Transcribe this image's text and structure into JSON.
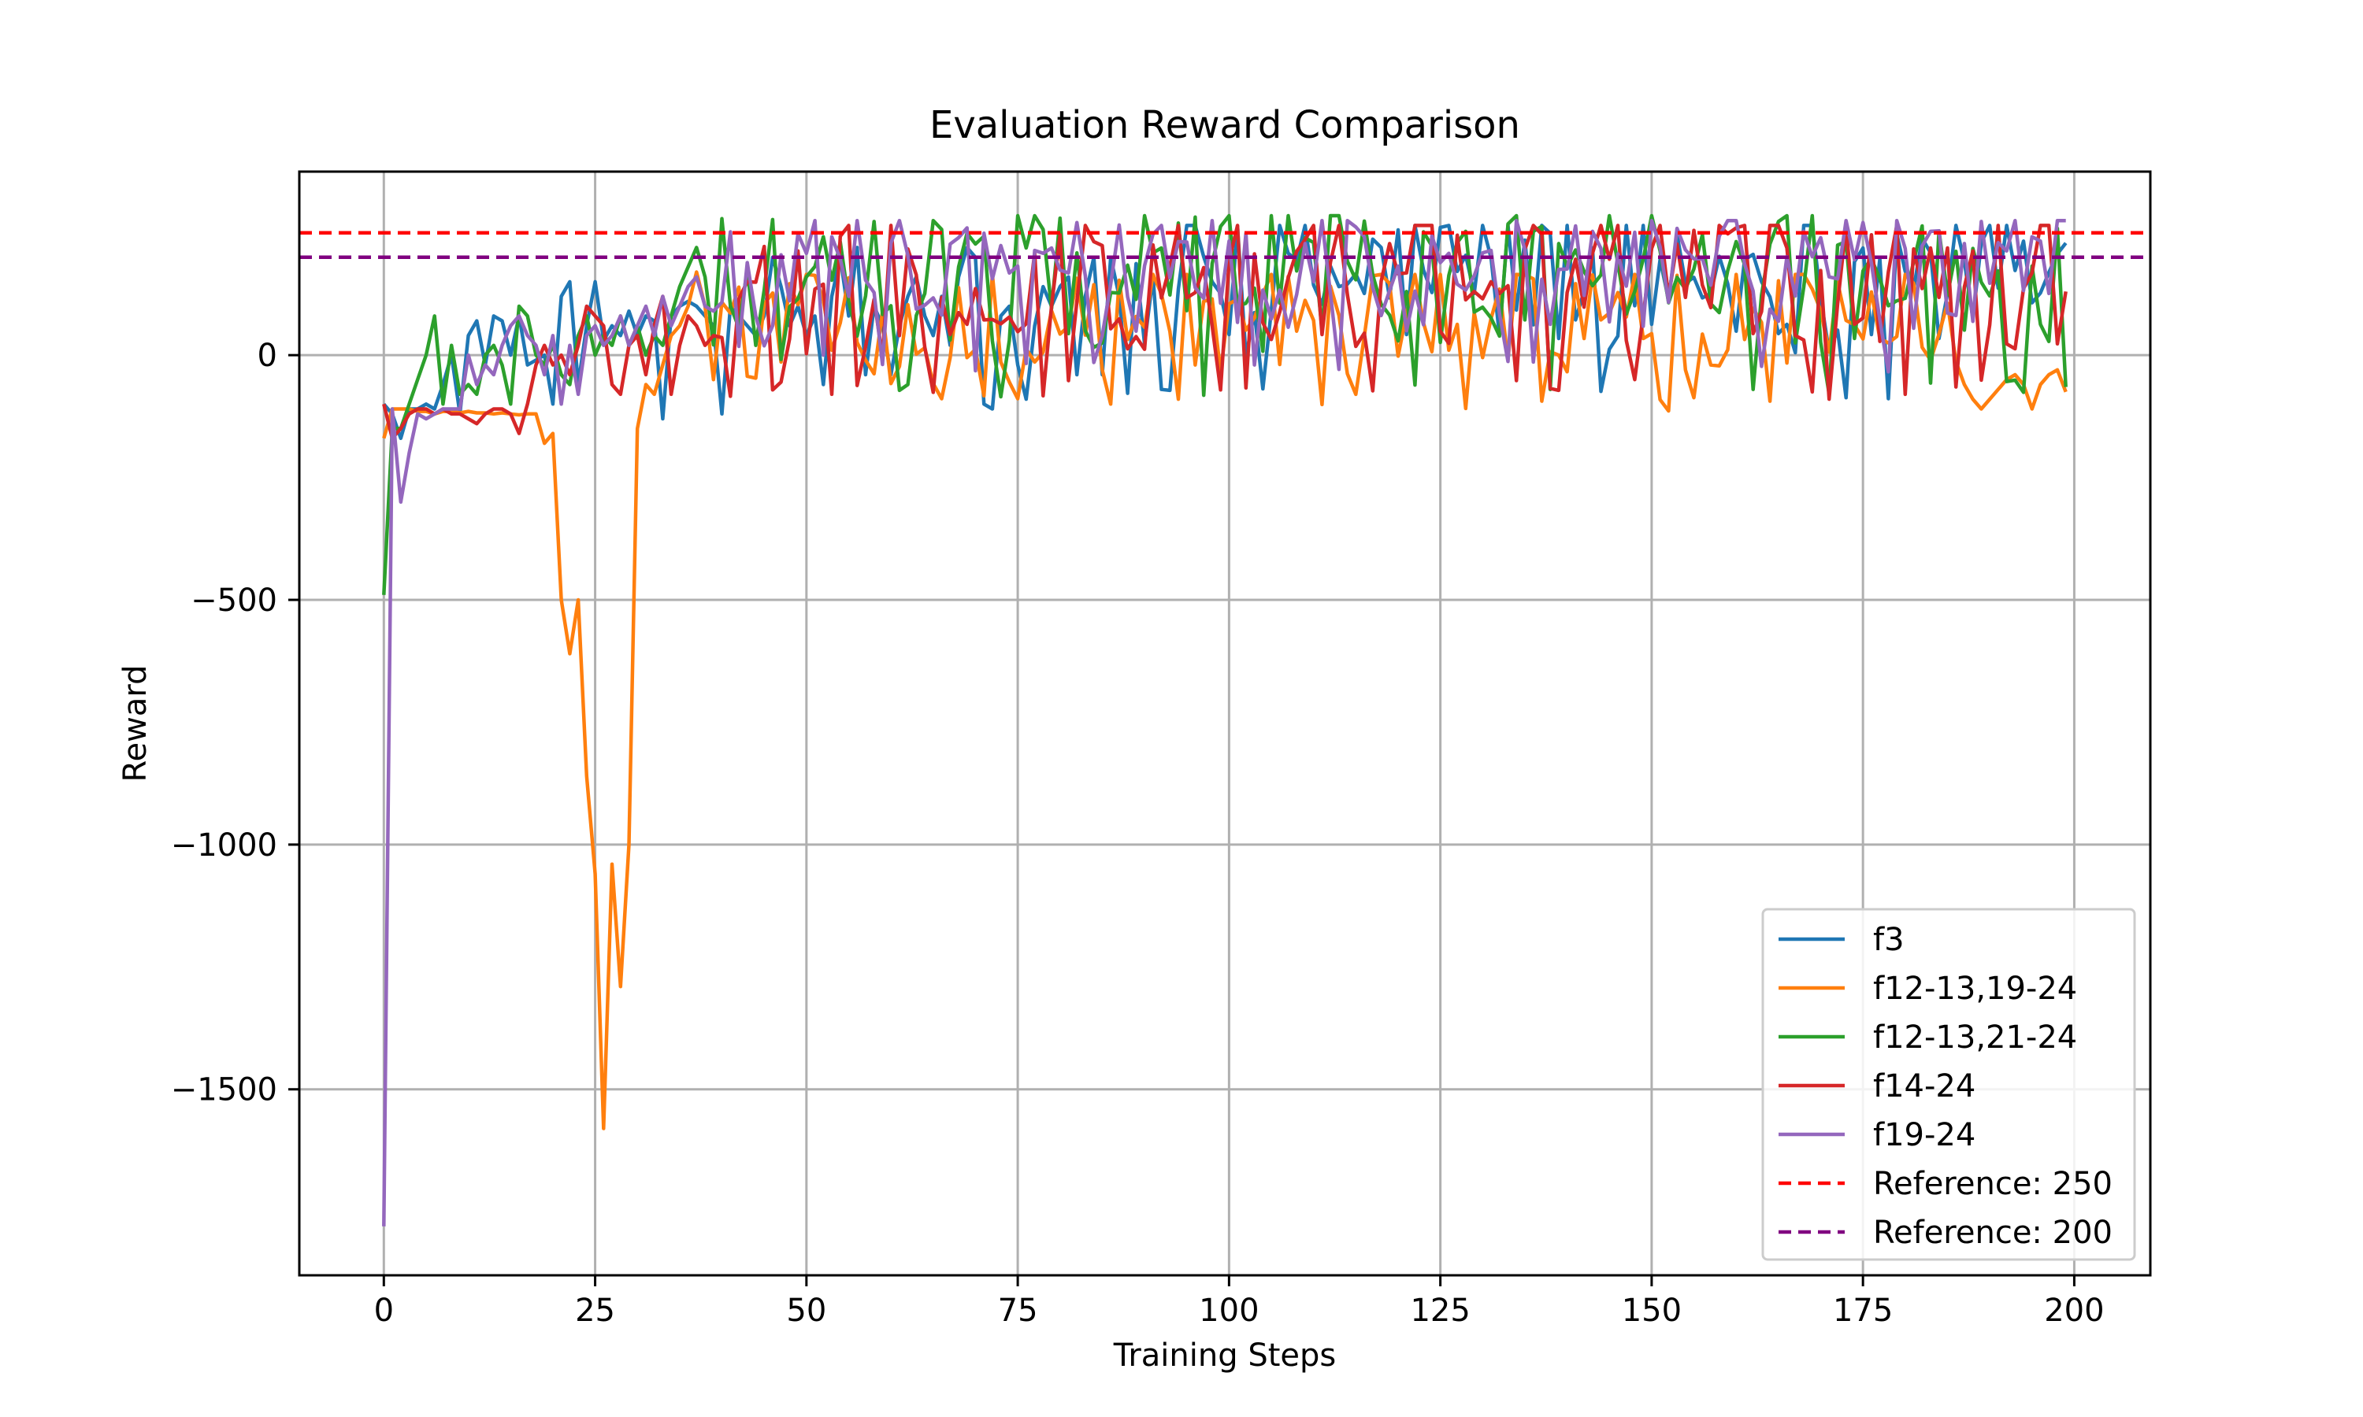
{
  "chart_data": {
    "type": "line",
    "title": "Evaluation Reward Comparison",
    "xlabel": "Training Steps",
    "ylabel": "Reward",
    "xlim": [
      -10,
      209
    ],
    "ylim": [
      -1880,
      375
    ],
    "xticks": [
      0,
      25,
      50,
      75,
      100,
      125,
      150,
      175,
      200
    ],
    "yticks": [
      0,
      -500,
      -1000,
      -1500
    ],
    "xtick_labels": [
      "0",
      "25",
      "50",
      "75",
      "100",
      "125",
      "150",
      "175",
      "200"
    ],
    "ytick_labels": [
      "0",
      "−500",
      "−1000",
      "−1500"
    ],
    "grid": true,
    "legend_position": "lower-right",
    "series": [
      {
        "name": "f3",
        "color": "#1f77b4",
        "linestyle": "solid",
        "start_values": [
          -100,
          -120,
          -170,
          -110,
          -110,
          -100,
          -110,
          -60,
          0,
          -120,
          40,
          70,
          -20,
          80,
          70,
          0,
          80,
          -20,
          -10,
          0,
          -100,
          120,
          150,
          -60,
          60,
          150,
          30,
          60,
          40,
          90,
          40,
          80,
          70,
          -130,
          80,
          100,
          110,
          100,
          80,
          60,
          -120,
          100,
          80,
          60,
          40,
          80,
          200,
          140,
          60,
          100,
          40,
          80,
          -60,
          120,
          200,
          80,
          220,
          -40,
          100,
          60,
          -40,
          60,
          120,
          160,
          80,
          40,
          120,
          20,
          160,
          220,
          200,
          -100,
          -110,
          80,
          100,
          -20,
          -90,
          60,
          140,
          100,
          140,
          160,
          -40,
          120,
          200,
          -40,
          200,
          120
        ],
        "trend_band": [
          -100,
          250
        ]
      },
      {
        "name": "f12-13,19-24",
        "color": "#ff7f0e",
        "linestyle": "solid",
        "start_values": [
          -170,
          -110,
          -110,
          -110,
          -115,
          -115,
          -120,
          -115,
          -115,
          -118,
          -115,
          -118,
          -118,
          -120,
          -118,
          -120,
          -122,
          -120,
          -120,
          -180,
          -160,
          -500,
          -610,
          -500,
          -860,
          -1060,
          -1580,
          -1040,
          -1290,
          -1000,
          -150,
          -60,
          -80,
          -20,
          40,
          60,
          100,
          170,
          100
        ],
        "trend_band": [
          -115,
          150
        ],
        "end_values": [
          -60,
          -90,
          -110,
          -90,
          -70,
          -50,
          -40,
          -60,
          -110,
          -60,
          -40,
          -30,
          -75
        ]
      },
      {
        "name": "f12-13,21-24",
        "color": "#2ca02c",
        "linestyle": "solid",
        "start_values": [
          -490,
          -150,
          -150,
          -100,
          -50,
          0,
          80,
          -100,
          20,
          -80,
          -60,
          -80,
          0,
          20,
          -20,
          -100,
          100,
          80,
          0,
          -20,
          20,
          -40,
          -60,
          40,
          80,
          0,
          40,
          20,
          80,
          20,
          60,
          0,
          40,
          20,
          80,
          140,
          180,
          220,
          160
        ],
        "trend_band": [
          -90,
          270
        ]
      },
      {
        "name": "f14-24",
        "color": "#d62728",
        "linestyle": "solid",
        "start_values": [
          -100,
          -170,
          -150,
          -120,
          -110,
          -110,
          -120,
          -110,
          -120,
          -120,
          -130,
          -140,
          -120,
          -110,
          -110,
          -120,
          -160,
          -100,
          -20,
          20,
          -20,
          0,
          -40,
          20,
          100,
          80,
          60,
          -60,
          -80,
          20,
          40,
          -40,
          60,
          120,
          -80,
          20,
          80,
          60,
          20,
          40
        ],
        "trend_band": [
          -90,
          250
        ]
      },
      {
        "name": "f19-24",
        "color": "#9467bd",
        "linestyle": "solid",
        "start_values": [
          -1780,
          -110,
          -300,
          -200,
          -120,
          -130,
          -120,
          -110,
          -110,
          -110,
          0,
          -60,
          -20,
          -40,
          20,
          60,
          80,
          40,
          20,
          -40,
          40,
          -100,
          20,
          -80,
          40,
          60,
          20,
          40,
          80,
          20,
          60,
          100,
          40,
          120,
          60,
          100,
          140,
          160,
          100
        ],
        "trend_band": [
          -40,
          260
        ]
      },
      {
        "name": "Reference: 250",
        "color": "#ff0000",
        "linestyle": "dashed",
        "constant": 250
      },
      {
        "name": "Reference: 200",
        "color": "#800080",
        "linestyle": "dashed",
        "constant": 200
      }
    ]
  }
}
